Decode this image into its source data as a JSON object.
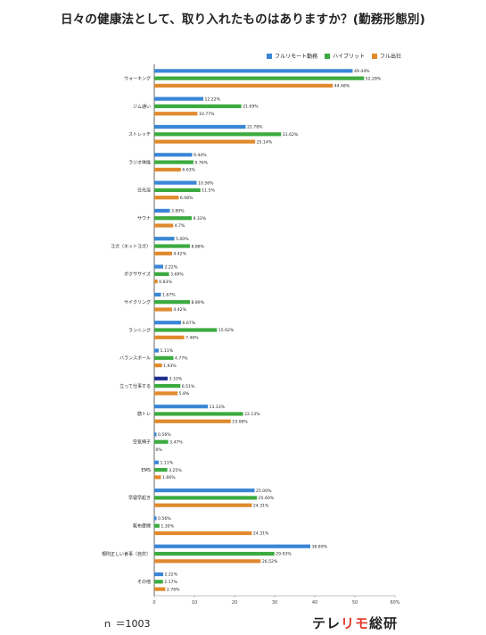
{
  "title": "日々の健康法として、取り入れたものはありますか？(勤務形態別)",
  "legend": [
    {
      "name": "フルリモート勤務",
      "color": "#3a86d6"
    },
    {
      "name": "ハイブリット",
      "color": "#3bab3f"
    },
    {
      "name": "フル出社",
      "color": "#e08a2e"
    }
  ],
  "footer": {
    "n": "ｎ ＝1003",
    "logo_a": "テレ",
    "logo_b": "リモ",
    "logo_c": "総研"
  },
  "chart_data": {
    "type": "bar",
    "orientation": "horizontal",
    "title": "日々の健康法として、取り入れたものはありますか？(勤務形態別)",
    "xlim": [
      0,
      60
    ],
    "xticks": [
      "0",
      "10",
      "20",
      "30",
      "40",
      "50",
      "60%"
    ],
    "categories": [
      "ウォーキング",
      "ジム通い",
      "ストレッチ",
      "ラジオ体操",
      "日光浴",
      "サウナ",
      "ヨガ（ホットヨガ）",
      "ボクササイズ",
      "サイクリング",
      "ランニング",
      "バランスボール",
      "立って仕事する",
      "筋トレ",
      "空気椅子",
      "EMS",
      "早寝早起き",
      "乾布摩擦",
      "規則正しい食事（自炊）",
      "その他"
    ],
    "series": [
      {
        "name": "フルリモート勤務",
        "color": "#3a86d6",
        "values": [
          49.44,
          12.22,
          22.78,
          9.44,
          10.56,
          3.89,
          5.0,
          2.22,
          1.67,
          6.67,
          1.11,
          3.33,
          13.33,
          0.56,
          1.11,
          25.0,
          0.56,
          38.89,
          2.22
        ],
        "labels": [
          "49.44%",
          "12.22%",
          "22.78%",
          "9.44%",
          "10.56%",
          "3.89%",
          "5.00%",
          "2.22%",
          "1.67%",
          "6.67%",
          "1.11%",
          "3.33%",
          "13.33%",
          "0.56%",
          "1.11%",
          "25.00%",
          "0.56%",
          "38.89%",
          "2.22%"
        ]
      },
      {
        "name": "ハイブリット",
        "color": "#3bab3f",
        "values": [
          52.28,
          21.69,
          31.62,
          9.76,
          11.5,
          9.33,
          8.88,
          3.69,
          8.89,
          15.62,
          4.77,
          6.51,
          22.13,
          3.47,
          3.25,
          25.6,
          1.3,
          29.93,
          2.17
        ],
        "labels": [
          "52.28%",
          "21.69%",
          "31.62%",
          "9.76%",
          "11.5%",
          "9.33%",
          "8.88%",
          "3.69%",
          "8.89%",
          "15.62%",
          "4.77%",
          "6.51%",
          "22.13%",
          "3.47%",
          "3.25%",
          "25.60%",
          "1.30%",
          "29.93%",
          "2.17%"
        ]
      },
      {
        "name": "フル出社",
        "color": "#e08a2e",
        "values": [
          44.48,
          10.77,
          25.14,
          6.63,
          6.08,
          4.7,
          4.42,
          0.83,
          4.42,
          7.46,
          1.93,
          5.8,
          19.06,
          0,
          1.66,
          24.31,
          24.31,
          26.52,
          2.76
        ],
        "labels": [
          "44.48%",
          "10.77%",
          "25.14%",
          "6.63%",
          "6.08%",
          "4.7%",
          "4.42%",
          "0.83%",
          "4.42%",
          "7.46%",
          "1.93%",
          "5.8%",
          "19.06%",
          "0%",
          "1.66%",
          "24.31%",
          "24.31%",
          "26.52%",
          "2.76%"
        ]
      }
    ],
    "highlight": {
      "category_index": 11,
      "series_index": 0,
      "color": "#1f2f8c"
    },
    "grid": false,
    "legend_position": "top-right"
  }
}
